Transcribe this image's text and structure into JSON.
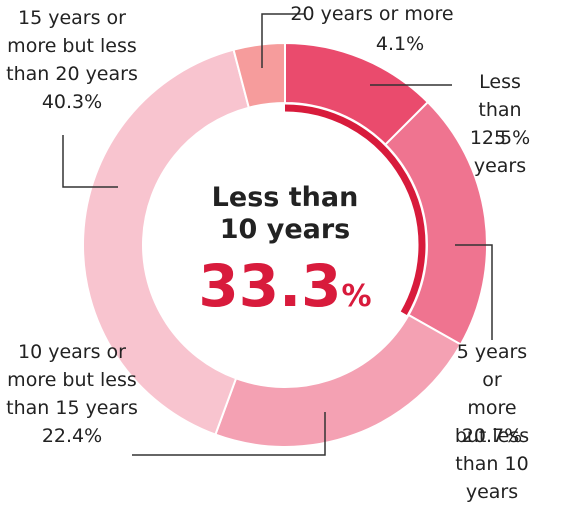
{
  "chart_data": {
    "type": "donut",
    "categories": [
      "Less than\n5 years",
      "5 years or\nmore but less\nthan 10 years",
      "10 years or\nmore but less\nthan 15 years",
      "15 years or\nmore but less\nthan 20 years",
      "20 years or more"
    ],
    "values": [
      12.5,
      20.7,
      22.4,
      40.3,
      4.1
    ],
    "value_labels": [
      "12.5%",
      "20.7%",
      "22.4%",
      "40.3%",
      "4.1%"
    ],
    "colors": [
      "#ea4b6d",
      "#ef7490",
      "#f4a1b3",
      "#f8c4cf",
      "#f69c9c"
    ],
    "center_title": "Less than\n10 years",
    "center_value": 33.3,
    "center_unit": "%",
    "center_color": "#d81b3c"
  }
}
